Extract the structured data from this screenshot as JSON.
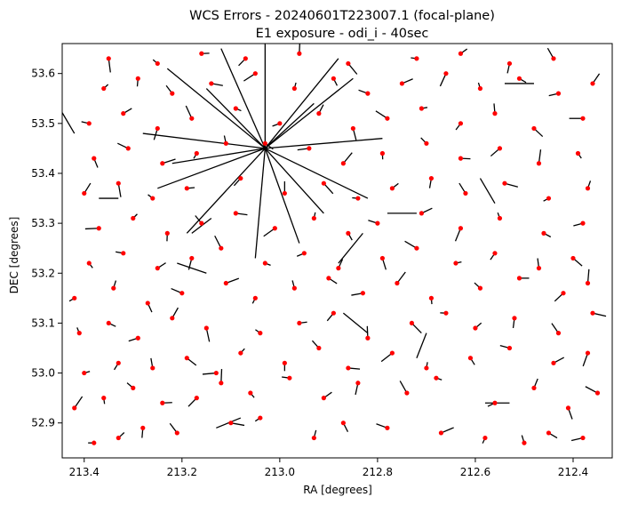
{
  "chart_data": {
    "type": "scatter",
    "title_lines": [
      "WCS Errors - 20240601T223007.1 (focal-plane)",
      "E1 exposure - odi_i - 40sec"
    ],
    "xlabel": "RA [degrees]",
    "ylabel": "DEC [degrees]",
    "x_reversed": true,
    "xlim": [
      213.445,
      212.32
    ],
    "ylim": [
      52.83,
      53.66
    ],
    "x_ticks": [
      213.4,
      213.2,
      213.0,
      212.8,
      212.6,
      212.4
    ],
    "x_tick_labels": [
      "213.4",
      "213.2",
      "213.0",
      "212.8",
      "212.6",
      "212.4"
    ],
    "y_ticks": [
      52.9,
      53.0,
      53.1,
      53.2,
      53.3,
      53.4,
      53.5,
      53.6
    ],
    "y_tick_labels": [
      "52.9",
      "53.0",
      "53.1",
      "53.2",
      "53.3",
      "53.4",
      "53.5",
      "53.6"
    ],
    "grid": false,
    "marker_color": "#ff0000",
    "vector_color": "#000000",
    "points": [
      [
        213.38,
        52.86
      ],
      [
        213.33,
        52.87
      ],
      [
        213.28,
        52.89
      ],
      [
        213.21,
        52.88
      ],
      [
        213.1,
        52.9
      ],
      [
        213.04,
        52.91
      ],
      [
        212.93,
        52.87
      ],
      [
        212.87,
        52.9
      ],
      [
        212.78,
        52.89
      ],
      [
        212.67,
        52.88
      ],
      [
        212.58,
        52.87
      ],
      [
        212.5,
        52.86
      ],
      [
        212.45,
        52.88
      ],
      [
        212.38,
        52.87
      ],
      [
        213.42,
        52.93
      ],
      [
        213.36,
        52.95
      ],
      [
        213.3,
        52.97
      ],
      [
        213.24,
        52.94
      ],
      [
        213.17,
        52.95
      ],
      [
        213.12,
        52.98
      ],
      [
        213.06,
        52.96
      ],
      [
        212.98,
        52.99
      ],
      [
        212.91,
        52.95
      ],
      [
        212.84,
        52.98
      ],
      [
        212.74,
        52.96
      ],
      [
        212.68,
        52.99
      ],
      [
        212.56,
        52.94
      ],
      [
        212.48,
        52.97
      ],
      [
        212.41,
        52.93
      ],
      [
        212.35,
        52.96
      ],
      [
        213.4,
        53.0
      ],
      [
        213.33,
        53.02
      ],
      [
        213.26,
        53.01
      ],
      [
        213.19,
        53.03
      ],
      [
        213.13,
        53.0
      ],
      [
        213.08,
        53.04
      ],
      [
        212.99,
        53.02
      ],
      [
        212.92,
        53.05
      ],
      [
        212.86,
        53.01
      ],
      [
        212.77,
        53.04
      ],
      [
        212.7,
        53.01
      ],
      [
        212.61,
        53.03
      ],
      [
        212.53,
        53.05
      ],
      [
        212.44,
        53.02
      ],
      [
        212.37,
        53.04
      ],
      [
        213.41,
        53.08
      ],
      [
        213.35,
        53.1
      ],
      [
        213.29,
        53.07
      ],
      [
        213.22,
        53.11
      ],
      [
        213.15,
        53.09
      ],
      [
        213.04,
        53.08
      ],
      [
        212.96,
        53.1
      ],
      [
        212.89,
        53.12
      ],
      [
        212.82,
        53.07
      ],
      [
        212.73,
        53.1
      ],
      [
        212.66,
        53.12
      ],
      [
        212.6,
        53.09
      ],
      [
        212.52,
        53.11
      ],
      [
        212.43,
        53.08
      ],
      [
        212.36,
        53.12
      ],
      [
        213.42,
        53.15
      ],
      [
        213.34,
        53.17
      ],
      [
        213.27,
        53.14
      ],
      [
        213.2,
        53.16
      ],
      [
        213.11,
        53.18
      ],
      [
        213.05,
        53.15
      ],
      [
        212.97,
        53.17
      ],
      [
        212.9,
        53.19
      ],
      [
        212.83,
        53.16
      ],
      [
        212.76,
        53.18
      ],
      [
        212.69,
        53.15
      ],
      [
        212.59,
        53.17
      ],
      [
        212.51,
        53.19
      ],
      [
        212.42,
        53.16
      ],
      [
        212.37,
        53.18
      ],
      [
        213.39,
        53.22
      ],
      [
        213.32,
        53.24
      ],
      [
        213.25,
        53.21
      ],
      [
        213.18,
        53.23
      ],
      [
        213.12,
        53.25
      ],
      [
        213.03,
        53.22
      ],
      [
        212.95,
        53.24
      ],
      [
        212.88,
        53.21
      ],
      [
        212.79,
        53.23
      ],
      [
        212.72,
        53.25
      ],
      [
        212.64,
        53.22
      ],
      [
        212.56,
        53.24
      ],
      [
        212.47,
        53.21
      ],
      [
        212.4,
        53.23
      ],
      [
        213.37,
        53.29
      ],
      [
        213.3,
        53.31
      ],
      [
        213.23,
        53.28
      ],
      [
        213.16,
        53.3
      ],
      [
        213.09,
        53.32
      ],
      [
        213.01,
        53.29
      ],
      [
        212.93,
        53.31
      ],
      [
        212.86,
        53.28
      ],
      [
        212.8,
        53.3
      ],
      [
        212.71,
        53.32
      ],
      [
        212.63,
        53.29
      ],
      [
        212.55,
        53.31
      ],
      [
        212.46,
        53.28
      ],
      [
        212.38,
        53.3
      ],
      [
        213.4,
        53.36
      ],
      [
        213.33,
        53.38
      ],
      [
        213.26,
        53.35
      ],
      [
        213.19,
        53.37
      ],
      [
        213.08,
        53.39
      ],
      [
        212.99,
        53.36
      ],
      [
        212.91,
        53.38
      ],
      [
        212.84,
        53.35
      ],
      [
        212.77,
        53.37
      ],
      [
        212.69,
        53.39
      ],
      [
        212.62,
        53.36
      ],
      [
        212.54,
        53.38
      ],
      [
        212.45,
        53.35
      ],
      [
        212.37,
        53.37
      ],
      [
        213.38,
        53.43
      ],
      [
        213.31,
        53.45
      ],
      [
        213.24,
        53.42
      ],
      [
        213.17,
        53.44
      ],
      [
        213.11,
        53.46
      ],
      [
        213.03,
        53.46
      ],
      [
        212.94,
        53.45
      ],
      [
        212.87,
        53.42
      ],
      [
        212.79,
        53.44
      ],
      [
        212.7,
        53.46
      ],
      [
        212.63,
        53.43
      ],
      [
        212.55,
        53.45
      ],
      [
        212.47,
        53.42
      ],
      [
        212.39,
        53.44
      ],
      [
        213.39,
        53.5
      ],
      [
        213.32,
        53.52
      ],
      [
        213.25,
        53.49
      ],
      [
        213.18,
        53.51
      ],
      [
        213.09,
        53.53
      ],
      [
        213.0,
        53.5
      ],
      [
        212.92,
        53.52
      ],
      [
        212.85,
        53.49
      ],
      [
        212.78,
        53.51
      ],
      [
        212.71,
        53.53
      ],
      [
        212.63,
        53.5
      ],
      [
        212.56,
        53.52
      ],
      [
        212.48,
        53.49
      ],
      [
        212.38,
        53.51
      ],
      [
        213.36,
        53.57
      ],
      [
        213.29,
        53.59
      ],
      [
        213.22,
        53.56
      ],
      [
        213.14,
        53.58
      ],
      [
        213.05,
        53.6
      ],
      [
        212.97,
        53.57
      ],
      [
        212.89,
        53.59
      ],
      [
        212.82,
        53.56
      ],
      [
        212.75,
        53.58
      ],
      [
        212.66,
        53.6
      ],
      [
        212.59,
        53.57
      ],
      [
        212.51,
        53.59
      ],
      [
        212.43,
        53.56
      ],
      [
        212.36,
        53.58
      ],
      [
        213.35,
        53.63
      ],
      [
        213.25,
        53.62
      ],
      [
        213.16,
        53.64
      ],
      [
        213.07,
        53.63
      ],
      [
        212.96,
        53.64
      ],
      [
        212.86,
        53.62
      ],
      [
        212.72,
        53.63
      ],
      [
        212.63,
        53.64
      ],
      [
        212.53,
        53.62
      ],
      [
        212.44,
        53.63
      ]
    ],
    "vectors": [
      [
        213.03,
        53.45,
        0.2,
        0.16
      ],
      [
        213.03,
        53.45,
        -0.18,
        0.14
      ],
      [
        213.03,
        53.45,
        0.22,
        -0.08
      ],
      [
        213.03,
        53.45,
        -0.21,
        -0.1
      ],
      [
        213.03,
        53.45,
        0.09,
        0.2
      ],
      [
        213.03,
        53.45,
        -0.07,
        -0.19
      ],
      [
        213.03,
        53.45,
        0.16,
        -0.17
      ],
      [
        213.03,
        53.45,
        -0.15,
        0.18
      ],
      [
        213.03,
        53.45,
        0.25,
        0.03
      ],
      [
        213.03,
        53.45,
        -0.24,
        0.02
      ],
      [
        213.03,
        53.45,
        0.02,
        -0.22
      ],
      [
        213.03,
        53.45,
        0.0,
        0.21
      ],
      [
        213.03,
        53.45,
        0.12,
        0.12
      ],
      [
        213.03,
        53.45,
        -0.12,
        -0.13
      ],
      [
        213.03,
        53.45,
        0.19,
        -0.03
      ],
      [
        213.03,
        53.45,
        -0.1,
        0.09
      ],
      [
        213.42,
        53.48,
        0.03,
        0.05
      ],
      [
        213.33,
        53.35,
        0.04,
        0.0
      ],
      [
        213.18,
        53.28,
        -0.04,
        0.03
      ],
      [
        212.88,
        53.22,
        -0.05,
        0.06
      ],
      [
        212.72,
        53.32,
        0.06,
        0.0
      ],
      [
        212.56,
        53.34,
        0.03,
        0.05
      ],
      [
        212.82,
        53.08,
        0.05,
        0.04
      ],
      [
        213.08,
        52.91,
        0.05,
        -0.02
      ],
      [
        212.58,
        52.94,
        -0.05,
        0.0
      ],
      [
        213.15,
        53.2,
        0.06,
        0.02
      ],
      [
        212.48,
        53.58,
        0.06,
        0.0
      ],
      [
        212.7,
        53.08,
        0.02,
        -0.05
      ]
    ]
  }
}
